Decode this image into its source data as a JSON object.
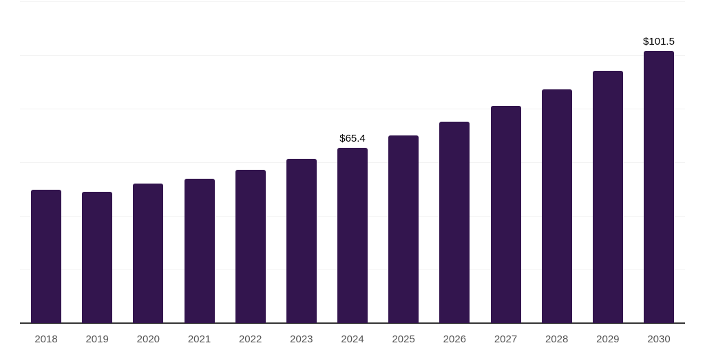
{
  "chart_data": {
    "type": "bar",
    "title": "",
    "xlabel": "",
    "ylabel": "",
    "categories": [
      "2018",
      "2019",
      "2020",
      "2021",
      "2022",
      "2023",
      "2024",
      "2025",
      "2026",
      "2027",
      "2028",
      "2029",
      "2030"
    ],
    "values": [
      49.7,
      49.1,
      52.0,
      53.9,
      57.1,
      61.2,
      65.4,
      70.1,
      75.1,
      81.0,
      87.3,
      94.2,
      101.5
    ],
    "bar_labels": [
      "",
      "",
      "",
      "",
      "",
      "",
      "$65.4",
      "",
      "",
      "",
      "",
      "",
      "$101.5"
    ],
    "ylim": [
      0,
      120
    ],
    "gridline_step": 20,
    "grid": true,
    "legend": false,
    "y_tick_labels_visible": false,
    "colors": {
      "bar_fill": "#33154E",
      "gridline": "#f2f2f2",
      "axis_line": "#333333",
      "x_tick_label": "#555555",
      "data_label": "#000000",
      "background": "#ffffff"
    }
  }
}
